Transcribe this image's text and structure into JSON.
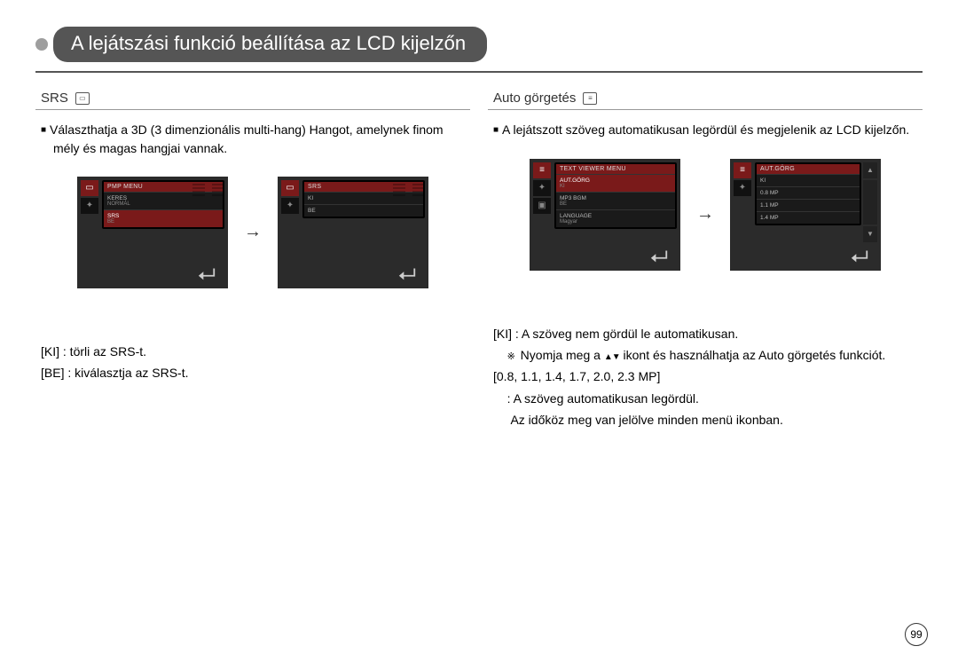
{
  "title": "A lejátszási funkció beállítása az LCD kijelzőn",
  "pageNumber": "99",
  "left": {
    "header": "SRS",
    "desc": "Választhatja a 3D (3 dimenzionális multi-hang) Hangot, amelynek finom mély és magas hangjai vannak.",
    "screen1": {
      "menuTitle": "PMP MENU",
      "items": [
        {
          "label": "KERES",
          "sub": "NORMÁL"
        },
        {
          "label": "SRS",
          "sub": "BE",
          "selected": true
        }
      ]
    },
    "screen2": {
      "menuTitle": "SRS",
      "items": [
        {
          "label": "KI"
        },
        {
          "label": "BE"
        }
      ]
    },
    "notes": [
      "[KI] : törli az SRS-t.",
      "[BE] : kiválasztja az SRS-t."
    ]
  },
  "right": {
    "header": "Auto görgetés",
    "desc": "A lejátszott szöveg automatikusan legördül és megjelenik az LCD kijelzőn.",
    "screen1": {
      "menuTitle": "TEXT VIEWER MENU",
      "items": [
        {
          "label": "AUT.GÖRG",
          "sub": "KI",
          "selected": true
        },
        {
          "label": "MP3 BGM",
          "sub": "BE"
        },
        {
          "label": "LANGUAGE",
          "sub": "Magyar"
        }
      ]
    },
    "screen2": {
      "menuTitle": "AUT.GÖRG",
      "items": [
        {
          "label": "KI"
        },
        {
          "label": "0.8 MP"
        },
        {
          "label": "1.1 MP"
        },
        {
          "label": "1.4 MP"
        }
      ]
    },
    "notes": {
      "l1": "[KI] : A szöveg nem gördül le automatikusan.",
      "l2a": "Nyomja meg a",
      "l2b": "ikont és használhatja az Auto görgetés funkciót.",
      "l3": "[0.8, 1.1, 1.4, 1.7, 2.0, 2.3 MP]",
      "l4": ": A szöveg automatikusan legördül.",
      "l5": "Az időköz meg van jelölve minden menü ikonban."
    }
  }
}
